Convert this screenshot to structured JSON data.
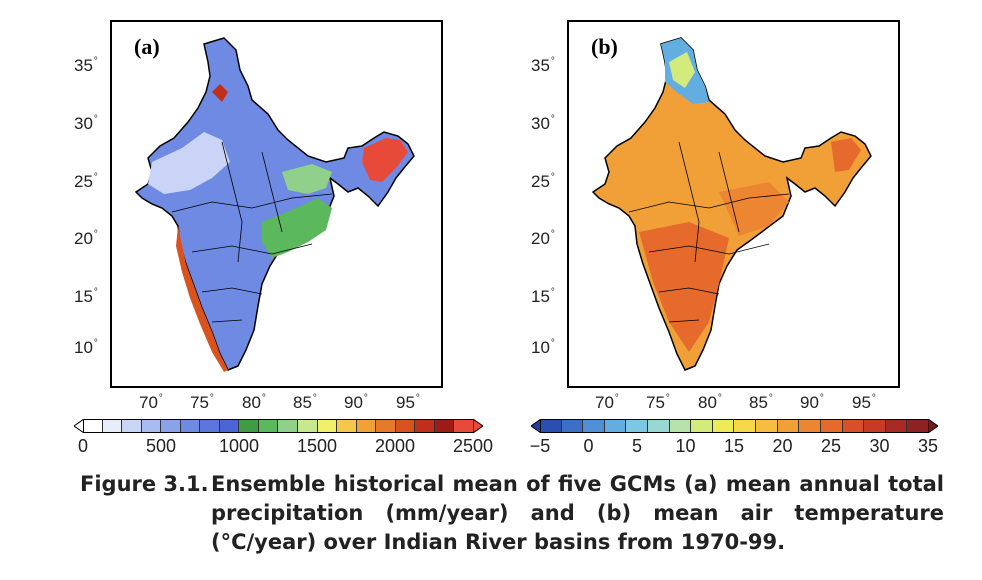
{
  "figure": {
    "caption_label": "Figure 3.1.",
    "caption_text": "Ensemble historical mean of five GCMs (a) mean annual total precipitation (mm/year) and (b) mean air temperature (°C/year) over Indian River basins from 1970-99."
  },
  "panels": [
    {
      "label": "(a)",
      "lon_ticks": [
        "70",
        "75",
        "80",
        "85",
        "90",
        "95"
      ],
      "lat_ticks": [
        "35",
        "30",
        "25",
        "20",
        "15",
        "10"
      ],
      "colorbar": {
        "labels": [
          "0",
          "500",
          "1000",
          "1500",
          "2000",
          "2500"
        ],
        "colors": [
          "#ffffff",
          "#e8ecfb",
          "#c9d4f6",
          "#a9bbf0",
          "#8aa2ea",
          "#6f8ae3",
          "#5b76dc",
          "#4a66d4",
          "#3f9c45",
          "#5cb85c",
          "#8fd18a",
          "#c7e88f",
          "#f2f06a",
          "#f5c84a",
          "#f0a236",
          "#e67a28",
          "#d9531e",
          "#bf2f1a",
          "#9c1b14",
          "#e84a3a"
        ]
      }
    },
    {
      "label": "(b)",
      "lon_ticks": [
        "70",
        "75",
        "80",
        "85",
        "90",
        "95"
      ],
      "lat_ticks": [
        "35",
        "30",
        "25",
        "20",
        "15",
        "10"
      ],
      "colorbar": {
        "labels": [
          "−5",
          "0",
          "5",
          "10",
          "15",
          "20",
          "25",
          "30",
          "35"
        ],
        "colors": [
          "#2a4fb0",
          "#3a6fc6",
          "#4f8fd6",
          "#63aee0",
          "#7cc7e2",
          "#98d8d0",
          "#b5e3a8",
          "#d3ea7c",
          "#ecec5a",
          "#f6d84a",
          "#f6bd40",
          "#f1a038",
          "#ec8632",
          "#e56a2c",
          "#d94f28",
          "#c63a26",
          "#a82a24",
          "#8e2222"
        ]
      }
    }
  ]
}
